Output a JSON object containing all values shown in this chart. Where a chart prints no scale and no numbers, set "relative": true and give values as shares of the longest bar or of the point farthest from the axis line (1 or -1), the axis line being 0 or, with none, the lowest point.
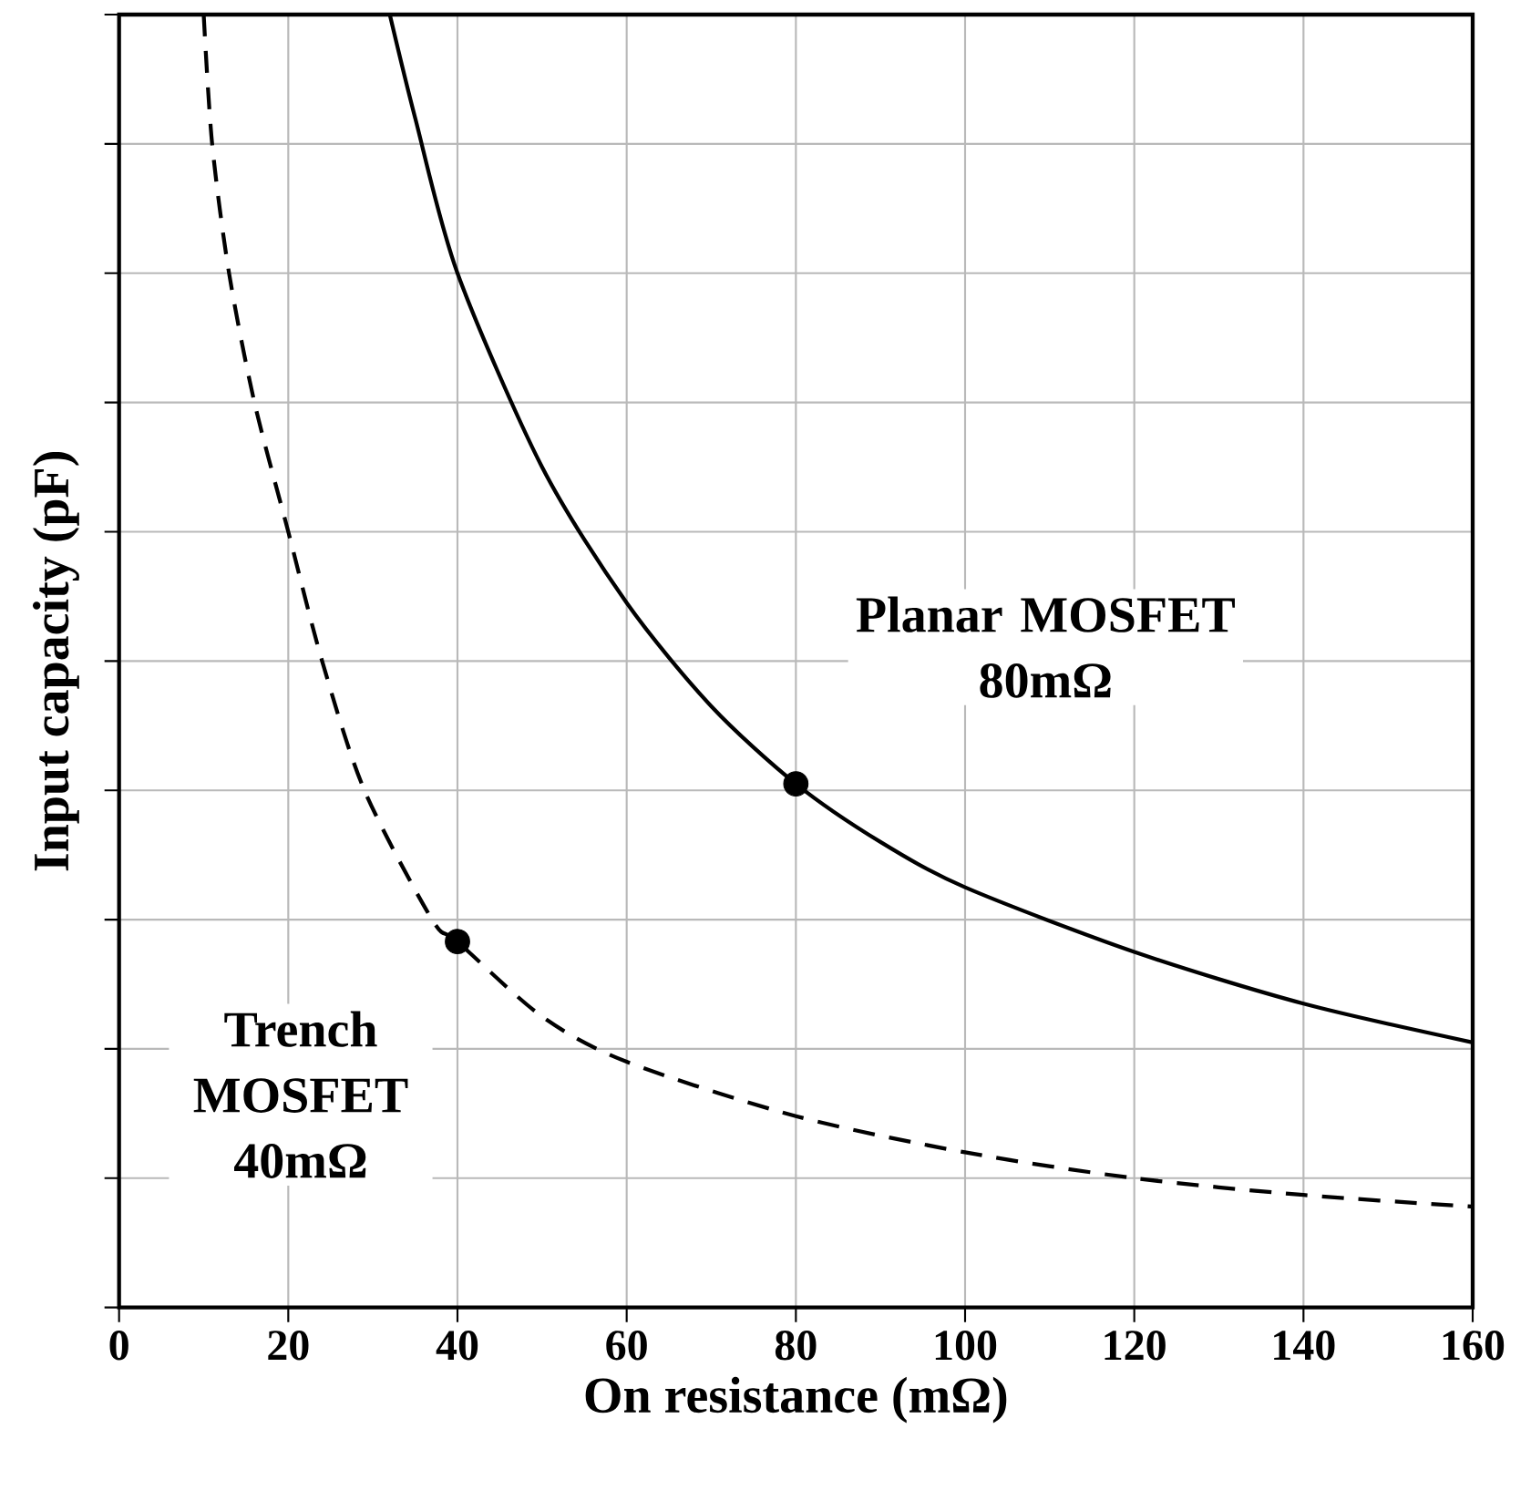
{
  "chart_data": {
    "type": "line",
    "relative": true,
    "xlabel": "On resistance (mΩ)",
    "ylabel": "Input capacity (pF)",
    "xlim": [
      0,
      160
    ],
    "xticks": [
      0,
      20,
      40,
      60,
      80,
      100,
      120,
      140,
      160
    ],
    "tick_labels": "x",
    "grid": true,
    "series": [
      {
        "color": "#000000",
        "line_style": "solid",
        "x": [
          32,
          35,
          40,
          50,
          60,
          70,
          80,
          90,
          100,
          120,
          140,
          160
        ],
        "values": [
          1.0,
          0.92,
          0.8,
          0.65,
          0.545,
          0.465,
          0.405,
          0.36,
          0.325,
          0.275,
          0.235,
          0.205
        ]
      },
      {
        "color": "#000000",
        "line_style": "dashed",
        "x": [
          10,
          11,
          13,
          16,
          20,
          24,
          29,
          37,
          40,
          50,
          60,
          80,
          100,
          120,
          140,
          160
        ],
        "values": [
          1.0,
          0.9,
          0.8,
          0.7,
          0.6,
          0.5,
          0.4,
          0.3,
          0.283,
          0.225,
          0.19,
          0.148,
          0.12,
          0.1,
          0.087,
          0.078
        ]
      },
      {
        "type": "scatter",
        "marker": "circle",
        "color": "#000000",
        "x": [
          40,
          80
        ],
        "values": [
          0.283,
          0.405
        ]
      }
    ],
    "annotations": [
      {
        "text": "Planar MOSFET 80mΩ",
        "x": 80,
        "y": 0.405
      },
      {
        "text": "Trench MOSFET 40mΩ",
        "x": 40,
        "y": 0.283
      }
    ]
  }
}
